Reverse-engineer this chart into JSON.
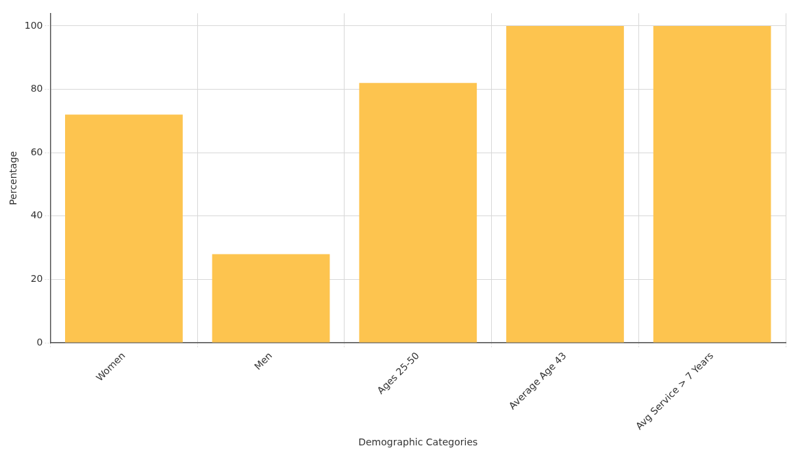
{
  "chart_data": {
    "type": "bar",
    "xlabel": "Demographic Categories",
    "ylabel": "Percentage",
    "categories": [
      "Women",
      "Men",
      "Ages 25-50",
      "Average Age 43",
      "Avg Service > 7 Years"
    ],
    "values": [
      72,
      28,
      82,
      100,
      100
    ],
    "color": "#fdc44f",
    "ylim": [
      0,
      104
    ],
    "yticks": [
      0,
      20,
      40,
      60,
      80,
      100
    ],
    "grid": true,
    "legend": false
  }
}
